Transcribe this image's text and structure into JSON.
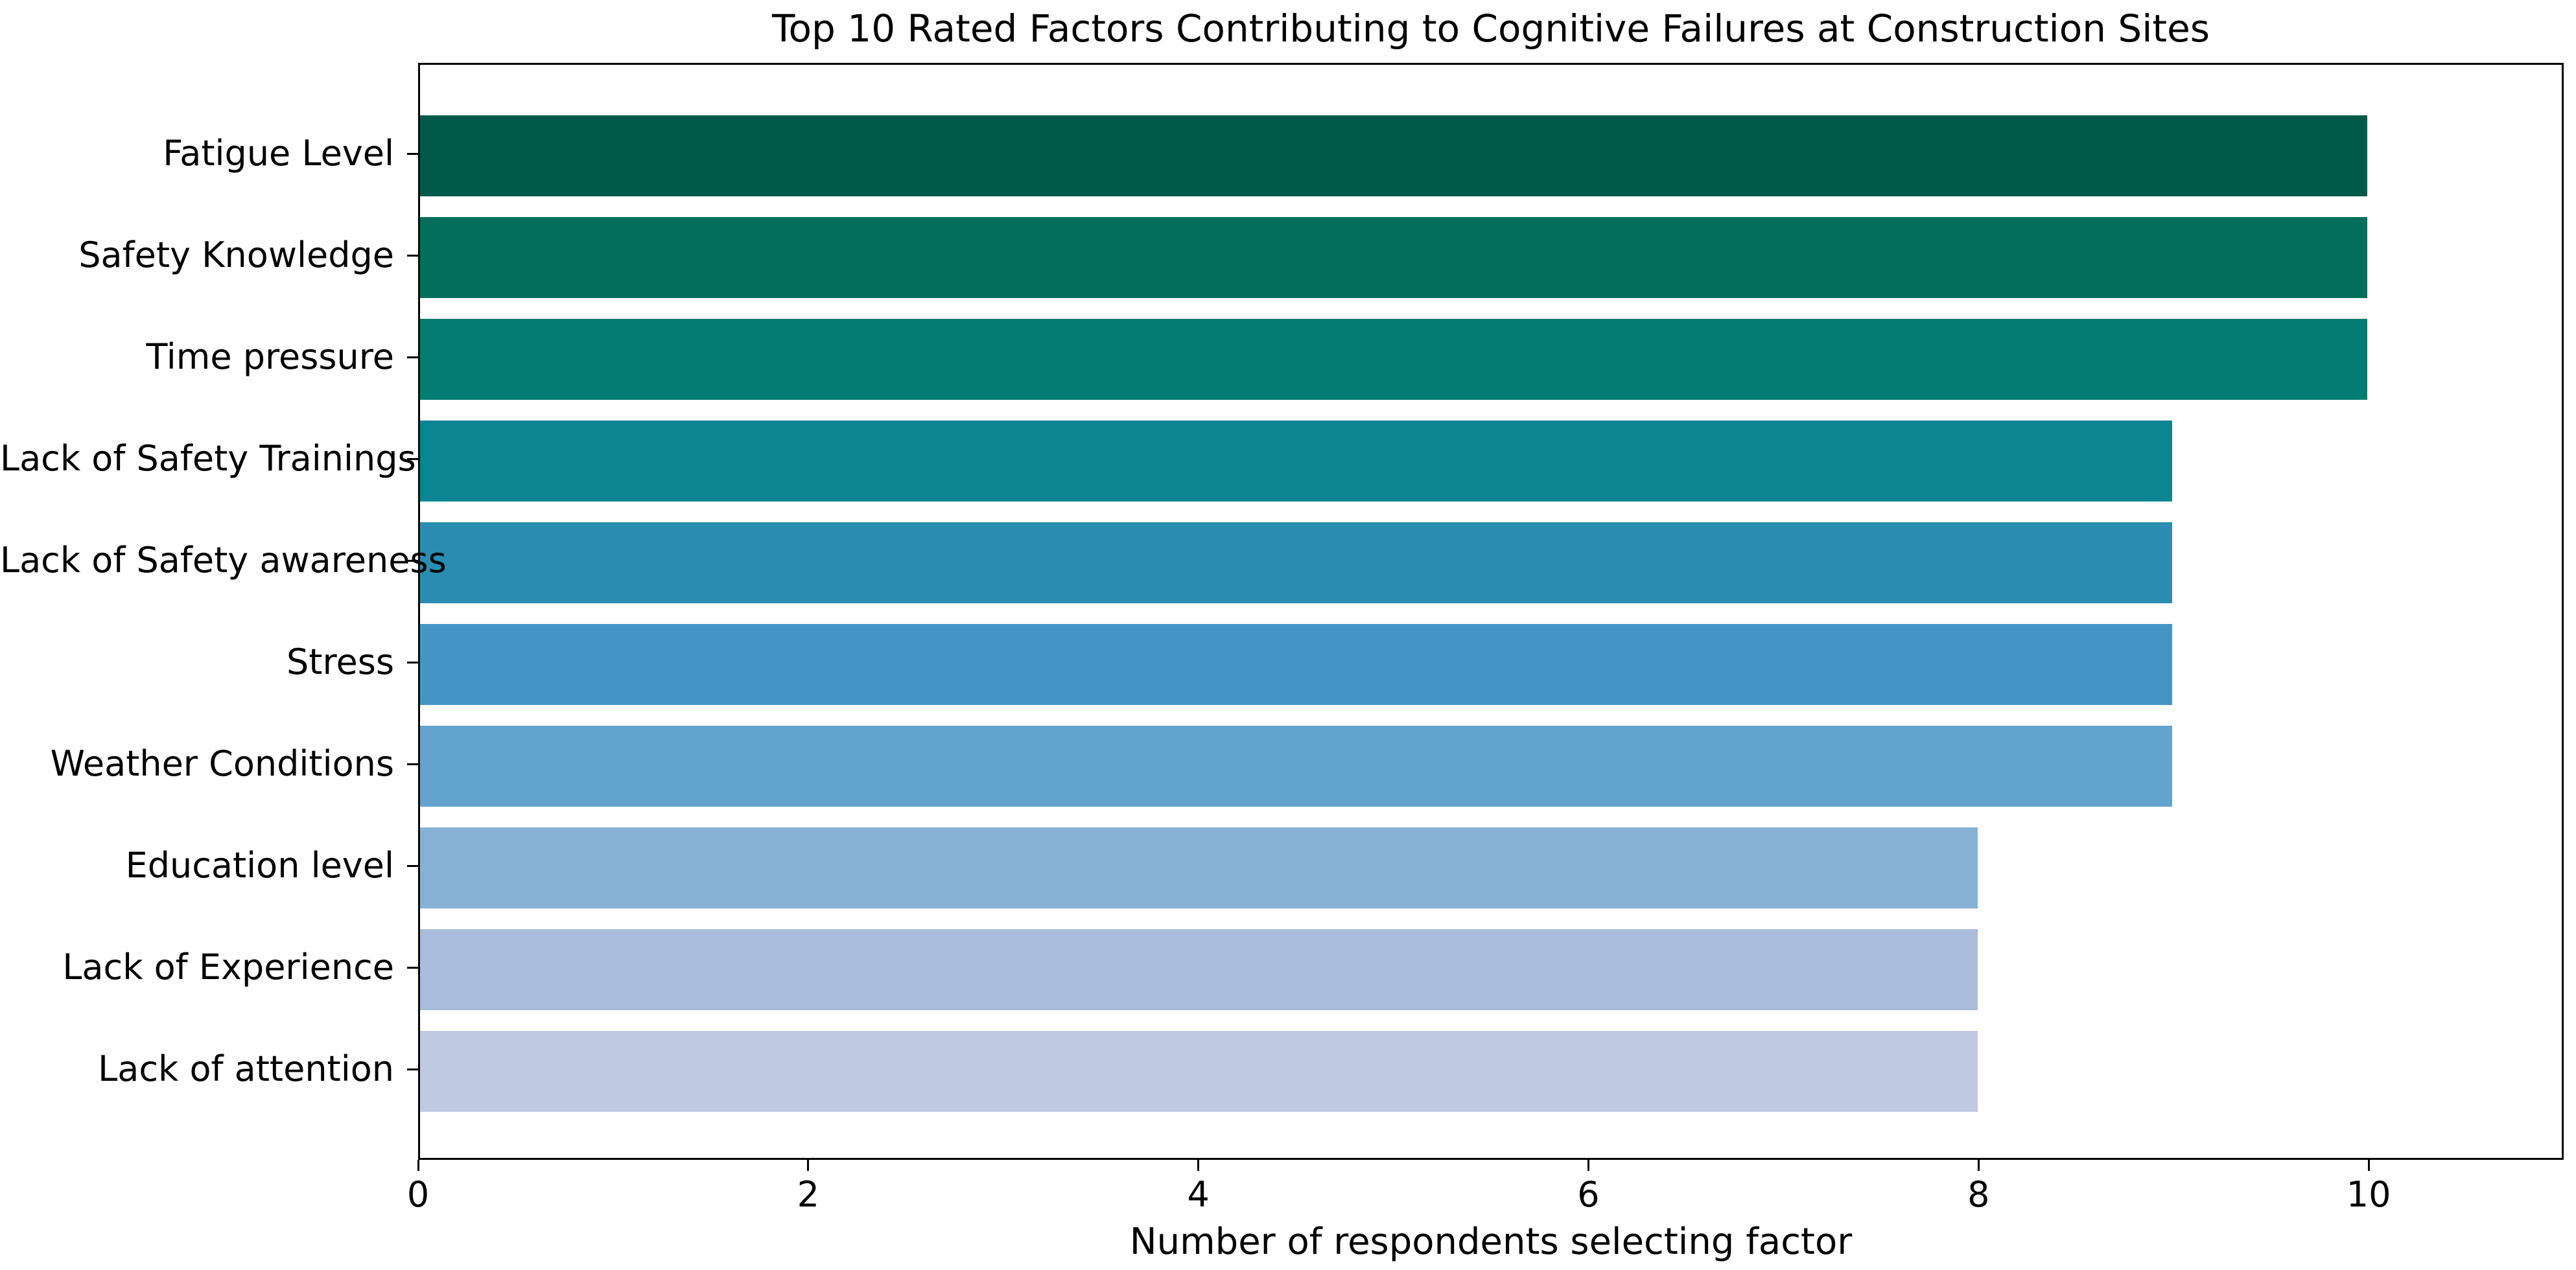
{
  "chart_data": {
    "type": "bar",
    "orientation": "horizontal",
    "title": "Top 10 Rated Factors Contributing to Cognitive Failures at Construction Sites",
    "xlabel": "Number of respondents selecting factor",
    "ylabel": "",
    "categories": [
      "Fatigue Level",
      "Safety Knowledge",
      "Time pressure",
      "Lack of Safety Trainings",
      "Lack of Safety awareness",
      "Stress",
      "Weather Conditions",
      "Education level",
      "Lack of Experience",
      "Lack of attention"
    ],
    "values": [
      10,
      10,
      10,
      9,
      9,
      9,
      9,
      8,
      8,
      8
    ],
    "bar_colors": [
      "#01594a",
      "#026e5b",
      "#037d71",
      "#0b8591",
      "#2a8cb0",
      "#4495c5",
      "#63a4ce",
      "#87b1d4",
      "#a9bcdc",
      "#c0c9e2"
    ],
    "xlim": [
      0,
      11
    ],
    "xticks": [
      0,
      2,
      4,
      6,
      8,
      10
    ],
    "grid": false,
    "legend": null,
    "axis_color": "#000000",
    "background_color": "#ffffff"
  }
}
